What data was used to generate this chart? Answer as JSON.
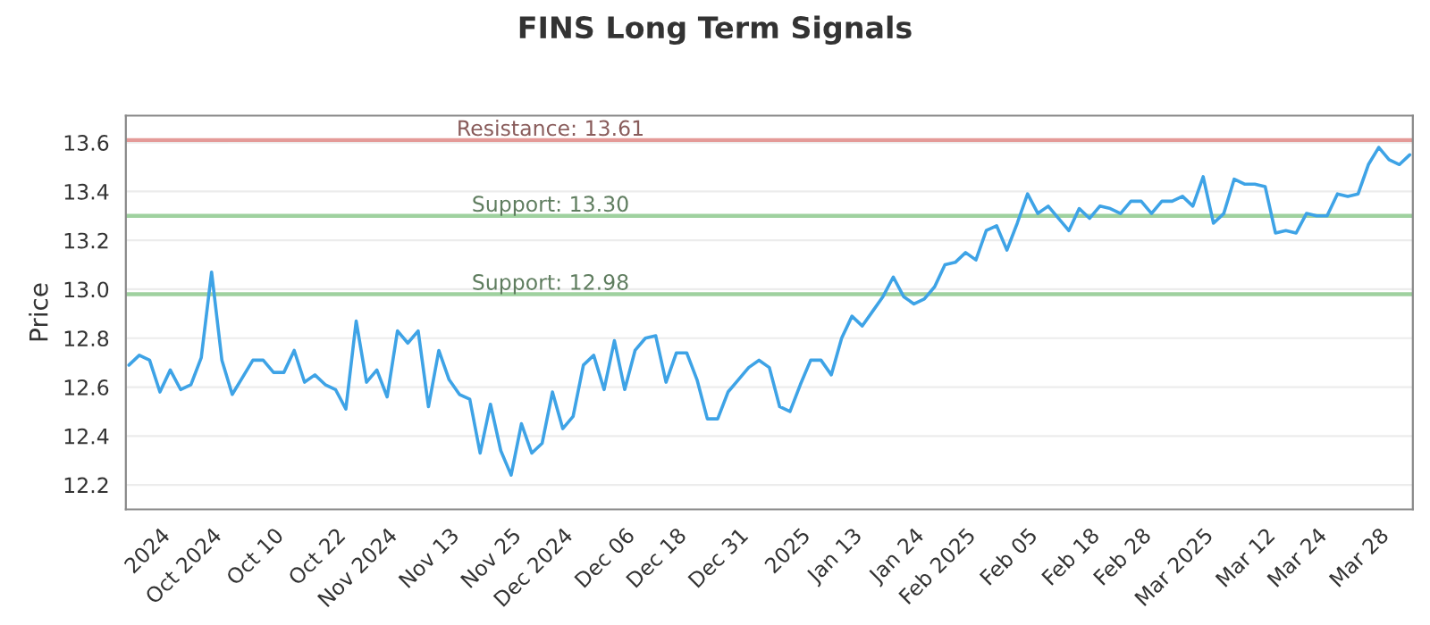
{
  "chart_data": {
    "type": "line",
    "title": "FINS Long Term Signals",
    "ylabel": "Price",
    "categories": [
      null,
      null,
      null,
      "2024",
      null,
      null,
      null,
      null,
      "Oct 2024",
      null,
      null,
      null,
      null,
      null,
      "Oct 10",
      null,
      null,
      null,
      null,
      null,
      "Oct 22",
      null,
      null,
      null,
      null,
      "Nov 2024",
      null,
      null,
      null,
      null,
      null,
      "Nov 13",
      null,
      null,
      null,
      null,
      null,
      "Nov 25",
      null,
      null,
      null,
      null,
      "Dec 2024",
      null,
      null,
      null,
      null,
      null,
      "Dec 06",
      null,
      null,
      null,
      null,
      "Dec 18",
      null,
      null,
      null,
      null,
      null,
      "Dec 31",
      null,
      null,
      null,
      null,
      null,
      "2025",
      null,
      null,
      null,
      null,
      "Jan 13",
      null,
      null,
      null,
      null,
      null,
      "Jan 24",
      null,
      null,
      null,
      null,
      "Feb 2025",
      null,
      null,
      null,
      null,
      null,
      "Feb 05",
      null,
      null,
      null,
      null,
      null,
      "Feb 18",
      null,
      null,
      null,
      null,
      "Feb 28",
      null,
      null,
      null,
      null,
      null,
      "Mar 2025",
      null,
      null,
      null,
      null,
      null,
      "Mar 12",
      null,
      null,
      null,
      null,
      "Mar 24",
      null,
      null,
      null,
      null,
      null,
      "Mar 28",
      null,
      null,
      null
    ],
    "series": [
      {
        "color": "#3ea3e6",
        "values": [
          12.69,
          12.73,
          12.71,
          12.58,
          12.67,
          12.59,
          12.61,
          12.72,
          13.07,
          12.71,
          12.57,
          12.64,
          12.71,
          12.71,
          12.66,
          12.66,
          12.75,
          12.62,
          12.65,
          12.61,
          12.59,
          12.51,
          12.87,
          12.62,
          12.67,
          12.56,
          12.83,
          12.78,
          12.83,
          12.52,
          12.75,
          12.63,
          12.57,
          12.55,
          12.33,
          12.53,
          12.34,
          12.24,
          12.45,
          12.33,
          12.37,
          12.58,
          12.43,
          12.48,
          12.69,
          12.73,
          12.59,
          12.79,
          12.59,
          12.75,
          12.8,
          12.81,
          12.62,
          12.74,
          12.74,
          12.63,
          12.47,
          12.47,
          12.58,
          12.63,
          12.68,
          12.71,
          12.68,
          12.52,
          12.5,
          12.61,
          12.71,
          12.71,
          12.65,
          12.8,
          12.89,
          12.85,
          12.91,
          12.97,
          13.05,
          12.97,
          12.94,
          12.96,
          13.01,
          13.1,
          13.11,
          13.15,
          13.12,
          13.24,
          13.26,
          13.16,
          13.27,
          13.39,
          13.31,
          13.34,
          13.29,
          13.24,
          13.33,
          13.29,
          13.34,
          13.33,
          13.31,
          13.36,
          13.36,
          13.31,
          13.36,
          13.36,
          13.38,
          13.34,
          13.46,
          13.27,
          13.31,
          13.45,
          13.43,
          13.43,
          13.42,
          13.23,
          13.24,
          13.23,
          13.31,
          13.3,
          13.3,
          13.39,
          13.38,
          13.39,
          13.51,
          13.58,
          13.53,
          13.51,
          13.55
        ]
      }
    ],
    "ylim": [
      12.1,
      13.71
    ],
    "yticks": [
      12.2,
      12.4,
      12.6,
      12.8,
      {
        "value": 13.0,
        "label": "13.0"
      },
      13.2,
      13.4,
      13.6
    ],
    "grid": "y",
    "ref_lines": [
      {
        "axis": "y",
        "value": 13.61,
        "label": "Resistance: 13.61",
        "color": "#e49a98"
      },
      {
        "axis": "y",
        "value": 13.3,
        "label": "Support: 13.30",
        "color": "#9fd19f"
      },
      {
        "axis": "y",
        "value": 12.98,
        "label": "Support: 12.98",
        "color": "#9fd19f"
      }
    ]
  }
}
